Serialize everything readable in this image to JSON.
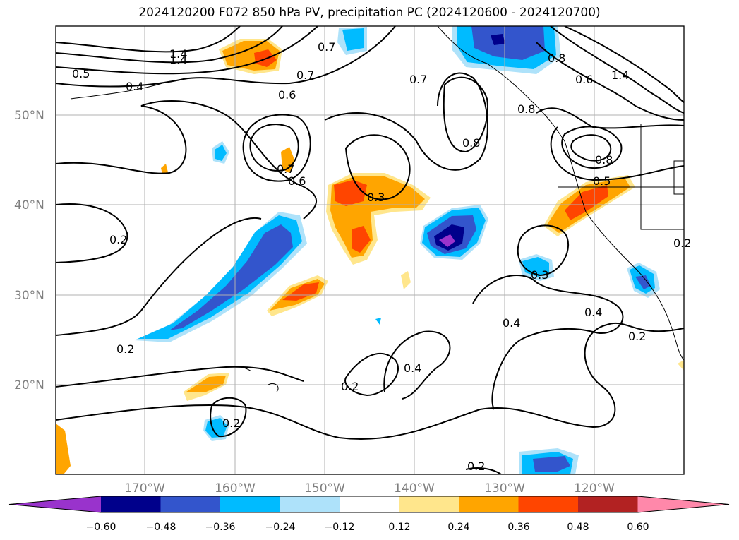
{
  "title": "2024120200 F072 850 hPa PV, precipitation PC (2024120600 - 2024120700)",
  "lat_labels": [
    "50°N",
    "40°N",
    "30°N",
    "20°N"
  ],
  "lon_labels": [
    "170°W",
    "160°W",
    "150°W",
    "140°W",
    "130°W",
    "120°W"
  ],
  "contour_labels": [
    "1.4",
    "0.5",
    "0.4",
    "0.6",
    "0.7",
    "0.7",
    "0.8",
    "0.7",
    "0.6",
    "0.3",
    "0.2",
    "0.2",
    "0.4",
    "0.2",
    "0.4",
    "0.2",
    "0.2",
    "0.3",
    "0.4",
    "0.2",
    "0.6",
    "0.8",
    "0.8",
    "1.4",
    "0.5",
    "0.7",
    "0.2",
    "0.8",
    "1.4"
  ],
  "colorbar": {
    "colors": [
      "#9933cc",
      "#00008b",
      "#3355cc",
      "#00bbff",
      "#aee2fa",
      "#ffffff",
      "#ffe68c",
      "#ffa500",
      "#ff4500",
      "#b22222",
      "#ff88aa"
    ],
    "tick_labels": [
      "−0.60",
      "−0.48",
      "−0.36",
      "−0.24",
      "−0.12",
      "0.12",
      "0.24",
      "0.36",
      "0.48",
      "0.60"
    ]
  }
}
